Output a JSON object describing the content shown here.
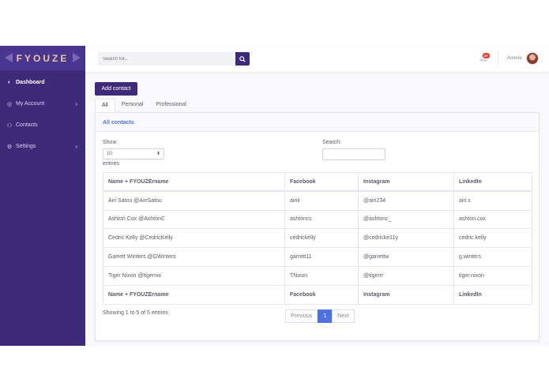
{
  "brand": {
    "name": "FYOUZE"
  },
  "sidebar": {
    "items": [
      {
        "label": "Dashboard",
        "icon": "dashboard-icon",
        "glyph": "◐",
        "active": true,
        "has_chevron": false
      },
      {
        "label": "My Account",
        "icon": "user-icon",
        "glyph": "◎",
        "active": false,
        "has_chevron": true
      },
      {
        "label": "Contacts",
        "icon": "users-icon",
        "glyph": "⚇",
        "active": false,
        "has_chevron": false
      },
      {
        "label": "Settings",
        "icon": "gear-icon",
        "glyph": "⚙",
        "active": false,
        "has_chevron": true
      }
    ]
  },
  "topbar": {
    "search_placeholder": "Search for...",
    "alert_count": "3+",
    "user_name": "Amelia"
  },
  "main": {
    "add_button": "Add contact",
    "tabs": [
      {
        "label": "All",
        "active": true
      },
      {
        "label": "Personal",
        "active": false
      },
      {
        "label": "Professional",
        "active": false
      }
    ],
    "card_title": "All contacts",
    "show_label": "Show",
    "page_length": "10",
    "entries_label": "entries",
    "search_label": "Search:",
    "table": {
      "headers": [
        "Name + FYOUZErname",
        "Facebook",
        "Instagram",
        "LinkedIn"
      ],
      "rows": [
        [
          "Airi Satou @AiriSatou",
          "airiii",
          "@airi234",
          "airi.s"
        ],
        [
          "Ashton Cox @AshtonC",
          "ashtoncc",
          "@ashtonc_",
          "ashton.cox"
        ],
        [
          "Cedric Kelly @CedricKelly",
          "cedrickelly",
          "@cedricke11y",
          "cedric.kelly"
        ],
        [
          "Garrett Winters @GWinters",
          "garrett11",
          "@garrettw",
          "g.winters"
        ],
        [
          "Tiger Nixon @tigernix",
          "TNixon",
          "@tigerrr",
          "tiger.nixon"
        ]
      ],
      "footers": [
        "Name + FYOUZErname",
        "Facebook",
        "Instagram",
        "LinkedIn"
      ]
    },
    "info": "Showing 1 to 5 of 5 entries",
    "pagination": {
      "previous": "Previous",
      "current": "1",
      "next": "Next"
    }
  },
  "colors": {
    "sidebar": "#3f2a7a",
    "accent": "#4e73df",
    "brand_text": "#e8c79a"
  }
}
